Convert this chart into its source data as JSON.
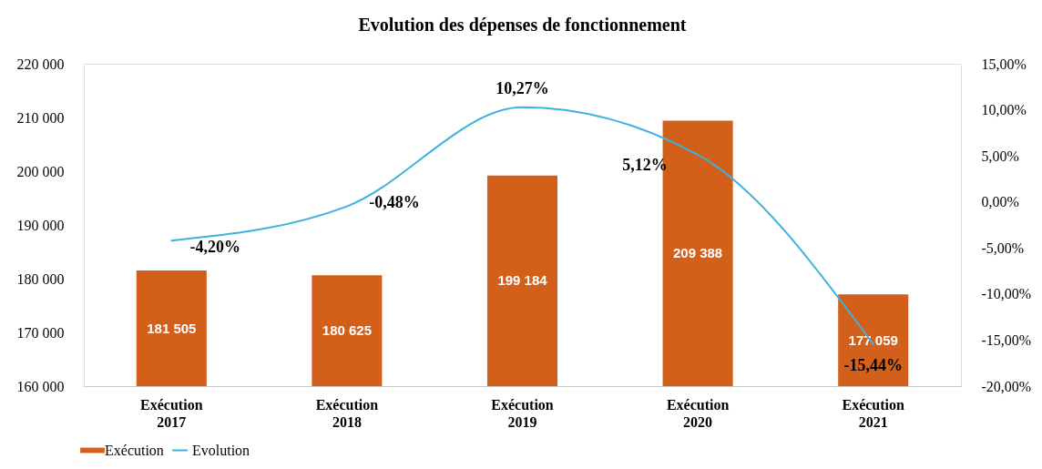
{
  "chart_data": {
    "type": "bar",
    "title": "Evolution des dépenses de fonctionnement",
    "categories": [
      "Exécution 2017",
      "Exécution 2018",
      "Exécution 2019",
      "Exécution 2020",
      "Exécution 2021"
    ],
    "series": [
      {
        "name": "Exécution",
        "color": "#d2601a",
        "values": [
          181505,
          180625,
          199184,
          209388,
          177059
        ],
        "value_labels": [
          "181 505",
          "180 625",
          "199 184",
          "209 388",
          "177 059"
        ]
      },
      {
        "name": "Evolution",
        "type": "line",
        "axis": "y2",
        "color": "#3cb2e0",
        "values": [
          -4.2,
          -0.48,
          10.27,
          5.12,
          -15.44
        ],
        "value_labels": [
          "-4,20%",
          "-0,48%",
          "10,27%",
          "5,12%",
          "-15,44%"
        ]
      }
    ],
    "ylim": [
      160000,
      220000
    ],
    "yticks": [
      {
        "value": 160000,
        "label": "160 000"
      },
      {
        "value": 170000,
        "label": "170 000"
      },
      {
        "value": 180000,
        "label": "180 000"
      },
      {
        "value": 190000,
        "label": "190 000"
      },
      {
        "value": 200000,
        "label": "200 000"
      },
      {
        "value": 210000,
        "label": "210 000"
      },
      {
        "value": 220000,
        "label": "220 000"
      }
    ],
    "y2lim": [
      -20,
      15
    ],
    "y2ticks": [
      {
        "value": -20,
        "label": "-20,00%"
      },
      {
        "value": -15,
        "label": "-15,00%"
      },
      {
        "value": -10,
        "label": "-10,00%"
      },
      {
        "value": -5,
        "label": "-5,00%"
      },
      {
        "value": 0,
        "label": "0,00%"
      },
      {
        "value": 5,
        "label": "5,00%"
      },
      {
        "value": 10,
        "label": "10,00%"
      },
      {
        "value": 15,
        "label": "15,00%"
      }
    ],
    "legend": "bottom",
    "line_style": "solid"
  }
}
